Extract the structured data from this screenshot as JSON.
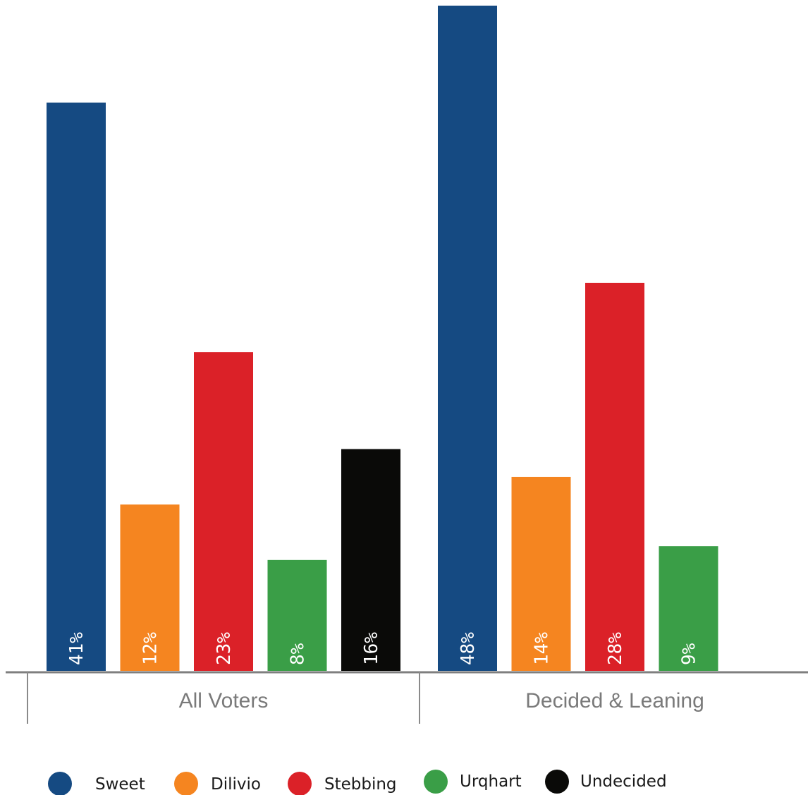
{
  "chart_data": {
    "type": "bar",
    "categories": [
      "All Voters",
      "Decided & Leaning"
    ],
    "series": [
      {
        "name": "Sweet",
        "color": "#154a82",
        "values": [
          41,
          48
        ],
        "labels": [
          "41%",
          "48%"
        ]
      },
      {
        "name": "Dilivio",
        "color": "#f58520",
        "values": [
          12,
          14
        ],
        "labels": [
          "12%",
          "14%"
        ]
      },
      {
        "name": "Stebbing",
        "color": "#db2128",
        "values": [
          23,
          28
        ],
        "labels": [
          "23%",
          "28%"
        ]
      },
      {
        "name": "Urqhart",
        "color": "#3a9e47",
        "values": [
          8,
          9
        ],
        "labels": [
          "8%",
          "9%"
        ]
      },
      {
        "name": "Undecided",
        "color": "#0a0a08",
        "values": [
          16,
          null
        ],
        "labels": [
          "16%",
          ""
        ]
      }
    ],
    "ylim": [
      0,
      48
    ],
    "grid": false,
    "legend_position": "bottom",
    "axis_color": "#7f7f7f"
  }
}
